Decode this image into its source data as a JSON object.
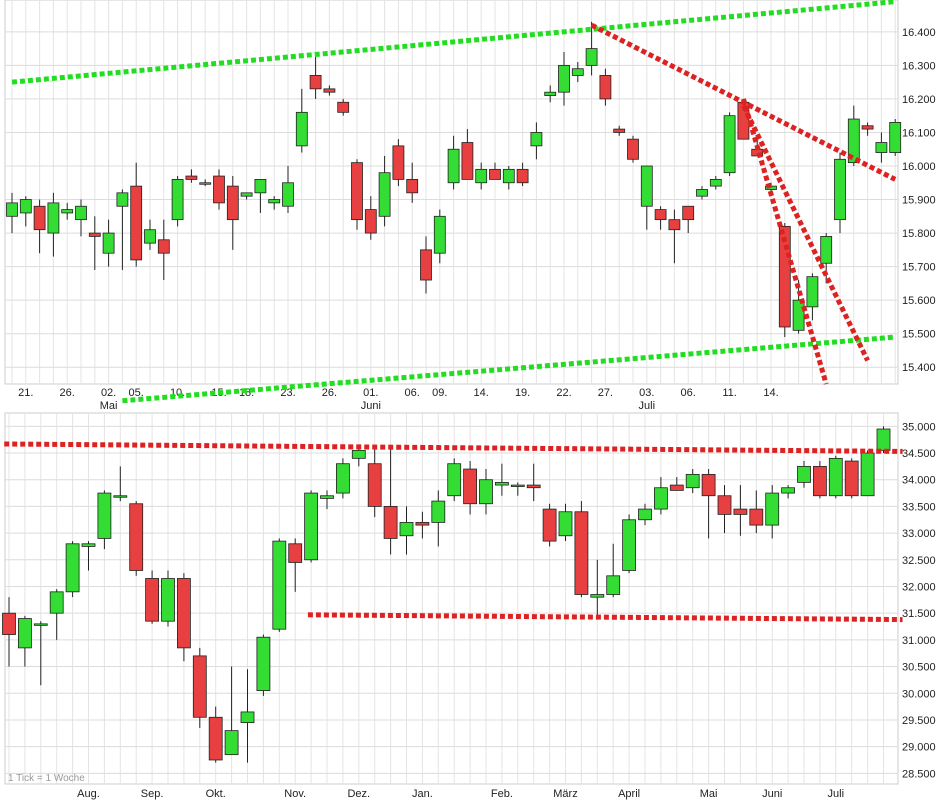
{
  "chart_data": [
    {
      "type": "candlestick",
      "ylim": [
        15350,
        16480
      ],
      "y_ticks": [
        "16.400",
        "16.300",
        "16.200",
        "16.100",
        "16.000",
        "15.900",
        "15.800",
        "15.700",
        "15.600",
        "15.500",
        "15.400"
      ],
      "y_tick_values": [
        16400,
        16300,
        16200,
        16100,
        16000,
        15900,
        15800,
        15700,
        15600,
        15500,
        15400
      ],
      "x_labels": [
        "21.",
        "26.",
        "02.",
        "05.",
        "10.",
        "15.",
        "18.",
        "23.",
        "26.",
        "01.",
        "06.",
        "09.",
        "14.",
        "19.",
        "22.",
        "27.",
        "03.",
        "06.",
        "11.",
        "14."
      ],
      "x_label_index": [
        1,
        4,
        7,
        9,
        12,
        15,
        17,
        20,
        23,
        26,
        29,
        31,
        34,
        37,
        40,
        43,
        46,
        49,
        52,
        55
      ],
      "month_labels": [
        {
          "text": "Mai",
          "index": 7
        },
        {
          "text": "Juni",
          "index": 26
        },
        {
          "text": "Juli",
          "index": 46
        }
      ],
      "candles": [
        {
          "o": 15850,
          "h": 15920,
          "l": 15800,
          "c": 15890
        },
        {
          "o": 15860,
          "h": 15910,
          "l": 15820,
          "c": 15900
        },
        {
          "o": 15880,
          "h": 15900,
          "l": 15740,
          "c": 15810
        },
        {
          "o": 15800,
          "h": 15920,
          "l": 15730,
          "c": 15890
        },
        {
          "o": 15860,
          "h": 15890,
          "l": 15840,
          "c": 15870
        },
        {
          "o": 15840,
          "h": 15900,
          "l": 15790,
          "c": 15880
        },
        {
          "o": 15800,
          "h": 15850,
          "l": 15690,
          "c": 15790
        },
        {
          "o": 15740,
          "h": 15840,
          "l": 15700,
          "c": 15800
        },
        {
          "o": 15880,
          "h": 15930,
          "l": 15690,
          "c": 15920
        },
        {
          "o": 15940,
          "h": 16010,
          "l": 15700,
          "c": 15720
        },
        {
          "o": 15770,
          "h": 15840,
          "l": 15750,
          "c": 15810
        },
        {
          "o": 15780,
          "h": 15840,
          "l": 15660,
          "c": 15740
        },
        {
          "o": 15840,
          "h": 15970,
          "l": 15820,
          "c": 15960
        },
        {
          "o": 15970,
          "h": 15990,
          "l": 15950,
          "c": 15960
        },
        {
          "o": 15950,
          "h": 15960,
          "l": 15940,
          "c": 15950
        },
        {
          "o": 15970,
          "h": 15990,
          "l": 15870,
          "c": 15890
        },
        {
          "o": 15940,
          "h": 15970,
          "l": 15750,
          "c": 15840
        },
        {
          "o": 15910,
          "h": 15920,
          "l": 15900,
          "c": 15920
        },
        {
          "o": 15920,
          "h": 15960,
          "l": 15860,
          "c": 15960
        },
        {
          "o": 15890,
          "h": 15910,
          "l": 15870,
          "c": 15900
        },
        {
          "o": 15880,
          "h": 16000,
          "l": 15860,
          "c": 15950
        },
        {
          "o": 16060,
          "h": 16230,
          "l": 16040,
          "c": 16160
        },
        {
          "o": 16270,
          "h": 16330,
          "l": 16200,
          "c": 16230
        },
        {
          "o": 16230,
          "h": 16240,
          "l": 16210,
          "c": 16220
        },
        {
          "o": 16190,
          "h": 16200,
          "l": 16150,
          "c": 16160
        },
        {
          "o": 16010,
          "h": 16020,
          "l": 15810,
          "c": 15840
        },
        {
          "o": 15870,
          "h": 15910,
          "l": 15780,
          "c": 15800
        },
        {
          "o": 15850,
          "h": 16030,
          "l": 15820,
          "c": 15980
        },
        {
          "o": 16060,
          "h": 16080,
          "l": 15940,
          "c": 15960
        },
        {
          "o": 15960,
          "h": 16010,
          "l": 15890,
          "c": 15920
        },
        {
          "o": 15750,
          "h": 15790,
          "l": 15620,
          "c": 15660
        },
        {
          "o": 15740,
          "h": 15870,
          "l": 15710,
          "c": 15850
        },
        {
          "o": 15950,
          "h": 16090,
          "l": 15930,
          "c": 16050
        },
        {
          "o": 16070,
          "h": 16110,
          "l": 15960,
          "c": 15960
        },
        {
          "o": 15950,
          "h": 16010,
          "l": 15930,
          "c": 15990
        },
        {
          "o": 15990,
          "h": 16010,
          "l": 15960,
          "c": 15960
        },
        {
          "o": 15950,
          "h": 16000,
          "l": 15930,
          "c": 15990
        },
        {
          "o": 15990,
          "h": 16010,
          "l": 15940,
          "c": 15950
        },
        {
          "o": 16060,
          "h": 16130,
          "l": 16020,
          "c": 16100
        },
        {
          "o": 16210,
          "h": 16240,
          "l": 16190,
          "c": 16220
        },
        {
          "o": 16220,
          "h": 16340,
          "l": 16180,
          "c": 16300
        },
        {
          "o": 16270,
          "h": 16310,
          "l": 16250,
          "c": 16290
        },
        {
          "o": 16300,
          "h": 16430,
          "l": 16270,
          "c": 16350
        },
        {
          "o": 16270,
          "h": 16290,
          "l": 16180,
          "c": 16200
        },
        {
          "o": 16110,
          "h": 16120,
          "l": 16090,
          "c": 16100
        },
        {
          "o": 16080,
          "h": 16090,
          "l": 16010,
          "c": 16020
        },
        {
          "o": 15880,
          "h": 16000,
          "l": 15810,
          "c": 16000
        },
        {
          "o": 15870,
          "h": 15880,
          "l": 15810,
          "c": 15840
        },
        {
          "o": 15840,
          "h": 15870,
          "l": 15710,
          "c": 15810
        },
        {
          "o": 15880,
          "h": 15880,
          "l": 15800,
          "c": 15840
        },
        {
          "o": 15910,
          "h": 15940,
          "l": 15900,
          "c": 15930
        },
        {
          "o": 15940,
          "h": 15970,
          "l": 15930,
          "c": 15960
        },
        {
          "o": 15980,
          "h": 16160,
          "l": 15970,
          "c": 16150
        },
        {
          "o": 16190,
          "h": 16200,
          "l": 16080,
          "c": 16080
        },
        {
          "o": 16050,
          "h": 16080,
          "l": 16030,
          "c": 16030
        },
        {
          "o": 15930,
          "h": 15950,
          "l": 15910,
          "c": 15940
        },
        {
          "o": 15820,
          "h": 15830,
          "l": 15490,
          "c": 15520
        },
        {
          "o": 15510,
          "h": 15660,
          "l": 15500,
          "c": 15600
        },
        {
          "o": 15580,
          "h": 15680,
          "l": 15540,
          "c": 15670
        },
        {
          "o": 15710,
          "h": 15800,
          "l": 15650,
          "c": 15790
        },
        {
          "o": 15840,
          "h": 16040,
          "l": 15800,
          "c": 16020
        },
        {
          "o": 16010,
          "h": 16180,
          "l": 16000,
          "c": 16140
        },
        {
          "o": 16120,
          "h": 16130,
          "l": 16090,
          "c": 16110
        },
        {
          "o": 16040,
          "h": 16100,
          "l": 16010,
          "c": 16070
        },
        {
          "o": 16040,
          "h": 16140,
          "l": 16030,
          "c": 16130
        }
      ],
      "trendlines": [
        {
          "color": "#22dd22",
          "points": [
            [
              0,
              16250
            ],
            [
              64,
              16490
            ]
          ]
        },
        {
          "color": "#22dd22",
          "points": [
            [
              8,
              15300
            ],
            [
              64,
              15490
            ]
          ]
        },
        {
          "color": "#dd2222",
          "points": [
            [
              42,
              16420
            ],
            [
              64,
              15960
            ]
          ]
        },
        {
          "color": "#dd2222",
          "points": [
            [
              53,
              16180
            ],
            [
              62,
              15420
            ]
          ]
        },
        {
          "color": "#dd2222",
          "points": [
            [
              53,
              16200
            ],
            [
              59,
              15350
            ]
          ]
        }
      ],
      "up_color": "#33dd33",
      "down_color": "#e84040"
    },
    {
      "type": "candlestick",
      "ylim": [
        28300,
        35250
      ],
      "y_ticks": [
        "35.000",
        "34.500",
        "34.000",
        "33.500",
        "33.000",
        "32.500",
        "32.000",
        "31.500",
        "31.000",
        "30.500",
        "30.000",
        "29.500",
        "29.000",
        "28.500"
      ],
      "y_tick_values": [
        35000,
        34500,
        34000,
        33500,
        33000,
        32500,
        32000,
        31500,
        31000,
        30500,
        30000,
        29500,
        29000,
        28500
      ],
      "x_labels": [
        "Aug.",
        "Sep.",
        "Okt.",
        "Nov.",
        "Dez.",
        "Jan.",
        "Feb.",
        "März",
        "April",
        "Mai",
        "Juni",
        "Juli"
      ],
      "x_label_index": [
        5,
        9,
        13,
        18,
        22,
        26,
        31,
        35,
        39,
        44,
        48,
        52
      ],
      "note": "1 Tick = 1 Woche",
      "candles": [
        {
          "o": 31500,
          "h": 31800,
          "l": 30500,
          "c": 31100
        },
        {
          "o": 30850,
          "h": 31450,
          "l": 30500,
          "c": 31400
        },
        {
          "o": 31300,
          "h": 31350,
          "l": 30150,
          "c": 31300
        },
        {
          "o": 31500,
          "h": 31950,
          "l": 31000,
          "c": 31900
        },
        {
          "o": 31900,
          "h": 32850,
          "l": 31800,
          "c": 32800
        },
        {
          "o": 32750,
          "h": 32850,
          "l": 32300,
          "c": 32800
        },
        {
          "o": 32900,
          "h": 33800,
          "l": 32700,
          "c": 33750
        },
        {
          "o": 33700,
          "h": 34250,
          "l": 33600,
          "c": 33700
        },
        {
          "o": 33550,
          "h": 33600,
          "l": 32200,
          "c": 32300
        },
        {
          "o": 32150,
          "h": 32300,
          "l": 31300,
          "c": 31350
        },
        {
          "o": 31350,
          "h": 32300,
          "l": 31250,
          "c": 32150
        },
        {
          "o": 32150,
          "h": 32250,
          "l": 30600,
          "c": 30850
        },
        {
          "o": 30700,
          "h": 30850,
          "l": 29350,
          "c": 29550
        },
        {
          "o": 29550,
          "h": 29750,
          "l": 28700,
          "c": 28750
        },
        {
          "o": 28850,
          "h": 30500,
          "l": 28850,
          "c": 29300
        },
        {
          "o": 29450,
          "h": 30450,
          "l": 28700,
          "c": 29650
        },
        {
          "o": 30050,
          "h": 31100,
          "l": 29950,
          "c": 31050
        },
        {
          "o": 31200,
          "h": 32900,
          "l": 31150,
          "c": 32850
        },
        {
          "o": 32800,
          "h": 32900,
          "l": 31900,
          "c": 32450
        },
        {
          "o": 32500,
          "h": 33800,
          "l": 32450,
          "c": 33750
        },
        {
          "o": 33650,
          "h": 33800,
          "l": 33450,
          "c": 33700
        },
        {
          "o": 33750,
          "h": 34400,
          "l": 33650,
          "c": 34300
        },
        {
          "o": 34400,
          "h": 34650,
          "l": 34250,
          "c": 34550
        },
        {
          "o": 34300,
          "h": 34600,
          "l": 33300,
          "c": 33500
        },
        {
          "o": 33500,
          "h": 34650,
          "l": 32600,
          "c": 32900
        },
        {
          "o": 32950,
          "h": 33500,
          "l": 32600,
          "c": 33200
        },
        {
          "o": 33200,
          "h": 33400,
          "l": 32900,
          "c": 33150
        },
        {
          "o": 33200,
          "h": 33800,
          "l": 32750,
          "c": 33600
        },
        {
          "o": 33700,
          "h": 34400,
          "l": 33600,
          "c": 34300
        },
        {
          "o": 34200,
          "h": 34350,
          "l": 33350,
          "c": 33550
        },
        {
          "o": 33550,
          "h": 34200,
          "l": 33350,
          "c": 34000
        },
        {
          "o": 33900,
          "h": 34300,
          "l": 33700,
          "c": 33950
        },
        {
          "o": 33900,
          "h": 33950,
          "l": 33700,
          "c": 33900
        },
        {
          "o": 33900,
          "h": 34300,
          "l": 33600,
          "c": 33850
        },
        {
          "o": 33450,
          "h": 33550,
          "l": 32750,
          "c": 32850
        },
        {
          "o": 32950,
          "h": 33550,
          "l": 32850,
          "c": 33400
        },
        {
          "o": 33400,
          "h": 33600,
          "l": 31800,
          "c": 31850
        },
        {
          "o": 31800,
          "h": 32500,
          "l": 31450,
          "c": 31850
        },
        {
          "o": 31850,
          "h": 32800,
          "l": 31800,
          "c": 32200
        },
        {
          "o": 32300,
          "h": 33350,
          "l": 32250,
          "c": 33250
        },
        {
          "o": 33250,
          "h": 33550,
          "l": 33150,
          "c": 33450
        },
        {
          "o": 33450,
          "h": 34050,
          "l": 33350,
          "c": 33850
        },
        {
          "o": 33900,
          "h": 34050,
          "l": 33800,
          "c": 33800
        },
        {
          "o": 33850,
          "h": 34200,
          "l": 33750,
          "c": 34100
        },
        {
          "o": 34100,
          "h": 34200,
          "l": 32900,
          "c": 33700
        },
        {
          "o": 33700,
          "h": 33900,
          "l": 33000,
          "c": 33350
        },
        {
          "o": 33450,
          "h": 33900,
          "l": 32950,
          "c": 33350
        },
        {
          "o": 33450,
          "h": 33800,
          "l": 33000,
          "c": 33150
        },
        {
          "o": 33150,
          "h": 33900,
          "l": 32900,
          "c": 33750
        },
        {
          "o": 33750,
          "h": 33900,
          "l": 33650,
          "c": 33850
        },
        {
          "o": 33950,
          "h": 34350,
          "l": 33850,
          "c": 34250
        },
        {
          "o": 34250,
          "h": 34350,
          "l": 33650,
          "c": 33700
        },
        {
          "o": 33700,
          "h": 34450,
          "l": 33650,
          "c": 34400
        },
        {
          "o": 34350,
          "h": 34400,
          "l": 33650,
          "c": 33700
        },
        {
          "o": 33700,
          "h": 34550,
          "l": 33700,
          "c": 34500
        },
        {
          "o": 34550,
          "h": 35000,
          "l": 34500,
          "c": 34950
        }
      ],
      "trendlines": [
        {
          "color": "#dd2222",
          "points": [
            [
              -0.3,
              34670
            ],
            [
              56.2,
              34530
            ]
          ]
        },
        {
          "color": "#dd2222",
          "points": [
            [
              18.8,
              31470
            ],
            [
              56.2,
              31380
            ]
          ]
        }
      ],
      "up_color": "#33dd33",
      "down_color": "#e84040"
    }
  ]
}
